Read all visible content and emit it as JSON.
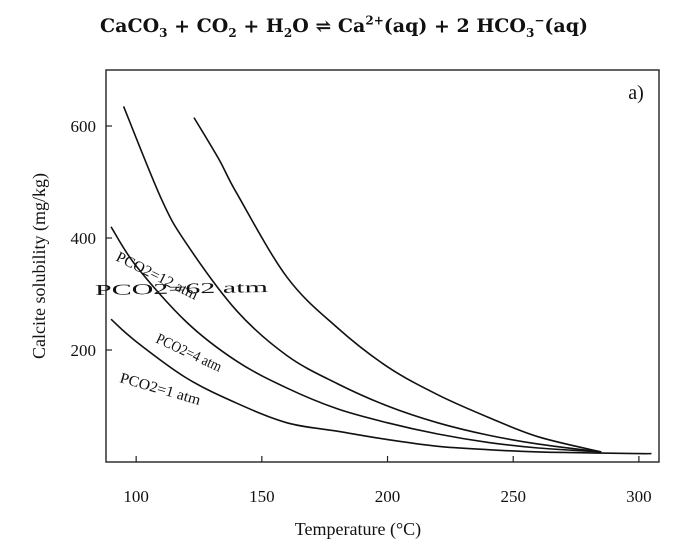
{
  "equation": {
    "reactant_1": "CaCO",
    "reactant_1_sub": "3",
    "plus_1": "+",
    "reactant_2": "CO",
    "reactant_2_sub": "2",
    "plus_2": "+",
    "reactant_3": "H",
    "reactant_3_sub": "2",
    "reactant_3_end": "O",
    "arrow": "⇌",
    "product_1": "Ca",
    "product_1_sup": "2+",
    "product_1_state": "(aq)",
    "plus_3": "+",
    "product_2": "2 HCO",
    "product_2_sub": "3",
    "product_2_sup": "−",
    "product_2_state": "(aq)"
  },
  "chart_data": {
    "type": "line",
    "panel_label": "a)",
    "xlabel": "Temperature (°C)",
    "ylabel": "Calcite solubility (mg/kg)",
    "xlim": [
      88,
      308
    ],
    "ylim": [
      0,
      700
    ],
    "xticks": [
      100,
      150,
      200,
      250,
      300
    ],
    "yticks": [
      200,
      400,
      600
    ],
    "grid": false,
    "series": [
      {
        "name": "PCO2=1 atm",
        "x": [
          90,
          100,
          120,
          140,
          160,
          180,
          200,
          220,
          240,
          260,
          285,
          300,
          305
        ],
        "y": [
          255,
          215,
          150,
          105,
          70,
          55,
          40,
          28,
          22,
          18,
          16,
          15,
          15
        ]
      },
      {
        "name": "PCO2=4 atm",
        "x": [
          90,
          100,
          120,
          140,
          160,
          180,
          200,
          220,
          240,
          260,
          285
        ],
        "y": [
          420,
          350,
          250,
          180,
          132,
          95,
          70,
          50,
          35,
          25,
          18
        ]
      },
      {
        "name": "PCO2=12 atm",
        "x": [
          95,
          110,
          120,
          140,
          160,
          180,
          200,
          220,
          240,
          260,
          285
        ],
        "y": [
          635,
          470,
          390,
          270,
          190,
          140,
          100,
          70,
          48,
          32,
          18
        ]
      },
      {
        "name": "PCO2=62 atm",
        "x": [
          123,
          133,
          140,
          160,
          180,
          200,
          220,
          240,
          260,
          285
        ],
        "y": [
          615,
          540,
          480,
          330,
          240,
          170,
          120,
          80,
          45,
          18
        ]
      }
    ]
  }
}
